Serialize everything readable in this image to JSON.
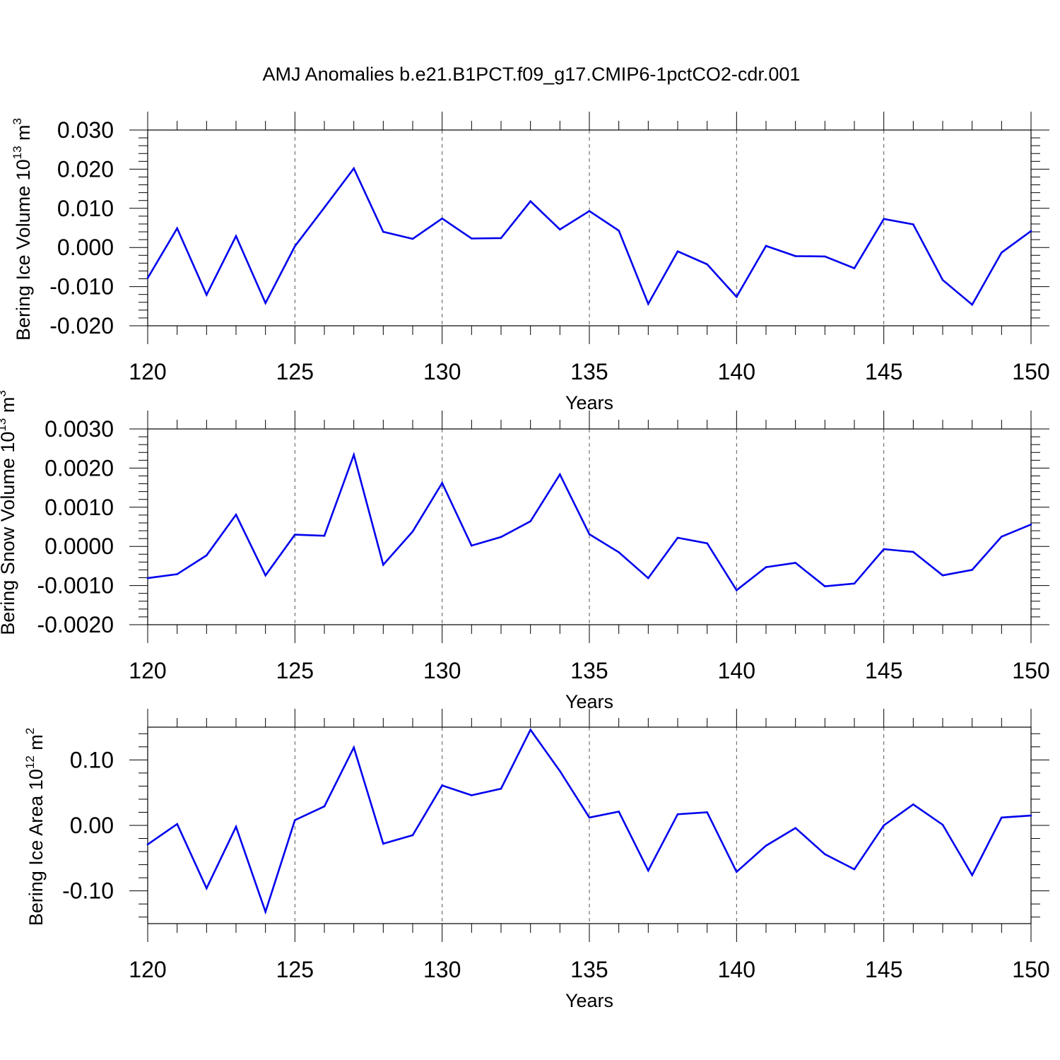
{
  "title": "AMJ Anomalies b.e21.B1PCT.f09_g17.CMIP6-1pctCO2-cdr.001",
  "chart_data": [
    {
      "type": "line",
      "title": "",
      "xlabel": "Years",
      "ylabel": "Bering Ice Volume 10",
      "ylabel_exp": "13",
      "ylabel_unit": "m",
      "ylabel_unit_exp": "3",
      "xlim": [
        120,
        150
      ],
      "ylim": [
        -0.02,
        0.03
      ],
      "xticks": [
        120,
        125,
        130,
        135,
        140,
        145,
        150
      ],
      "xtick_labels": [
        "120",
        "125",
        "130",
        "135",
        "140",
        "145",
        "150"
      ],
      "yticks": [
        -0.02,
        -0.01,
        0.0,
        0.01,
        0.02,
        0.03
      ],
      "ytick_labels": [
        "-0.020",
        "-0.010",
        "0.000",
        "0.010",
        "0.020",
        "0.030"
      ],
      "grid": "dashed vertical at major x ticks",
      "line_color": "#0000ee",
      "series": [
        {
          "x": [
            120,
            121,
            122,
            123,
            124,
            125,
            126,
            127,
            128,
            129,
            130,
            131,
            132,
            133,
            134,
            135,
            136,
            137,
            138,
            139,
            140,
            141,
            142,
            143,
            144,
            145,
            146,
            147,
            148,
            149,
            150
          ],
          "values": [
            -0.0078,
            0.0049,
            -0.0121,
            0.0029,
            -0.0142,
            0.0003,
            0.0102,
            0.0202,
            0.004,
            0.0022,
            0.0074,
            0.0023,
            0.0024,
            0.0118,
            0.0046,
            0.0093,
            0.0043,
            -0.0144,
            -0.001,
            -0.0043,
            -0.0126,
            0.0004,
            -0.0022,
            -0.0023,
            -0.0053,
            0.0073,
            0.0059,
            -0.0083,
            -0.0146,
            -0.0013,
            0.0042
          ]
        }
      ]
    },
    {
      "type": "line",
      "title": "",
      "xlabel": "Years",
      "ylabel": "Bering Snow Volume 10",
      "ylabel_exp": "13",
      "ylabel_unit": "m",
      "ylabel_unit_exp": "3",
      "xlim": [
        120,
        150
      ],
      "ylim": [
        -0.002,
        0.003
      ],
      "xticks": [
        120,
        125,
        130,
        135,
        140,
        145,
        150
      ],
      "xtick_labels": [
        "120",
        "125",
        "130",
        "135",
        "140",
        "145",
        "150"
      ],
      "yticks": [
        -0.002,
        -0.001,
        0.0,
        0.001,
        0.002,
        0.003
      ],
      "ytick_labels": [
        "-0.0020",
        "-0.0010",
        "0.0000",
        "0.0010",
        "0.0020",
        "0.0030"
      ],
      "grid": "dashed vertical at major x ticks",
      "line_color": "#0000ee",
      "series": [
        {
          "x": [
            120,
            121,
            122,
            123,
            124,
            125,
            126,
            127,
            128,
            129,
            130,
            131,
            132,
            133,
            134,
            135,
            136,
            137,
            138,
            139,
            140,
            141,
            142,
            143,
            144,
            145,
            146,
            147,
            148,
            149,
            150
          ],
          "values": [
            -0.00081,
            -0.00071,
            -0.00023,
            0.00081,
            -0.00074,
            0.0003,
            0.00027,
            0.00234,
            -0.00047,
            0.00038,
            0.00162,
            2e-05,
            0.00024,
            0.00064,
            0.00184,
            0.00031,
            -0.00015,
            -0.00081,
            0.00022,
            8e-05,
            -0.00112,
            -0.00053,
            -0.00042,
            -0.00102,
            -0.00095,
            -7e-05,
            -0.00014,
            -0.00074,
            -0.0006,
            0.00025,
            0.00056
          ]
        }
      ]
    },
    {
      "type": "line",
      "title": "",
      "xlabel": "Years",
      "ylabel": "Bering Ice Area 10",
      "ylabel_exp": "12",
      "ylabel_unit": "m",
      "ylabel_unit_exp": "2",
      "xlim": [
        120,
        150
      ],
      "ylim": [
        -0.15,
        0.15
      ],
      "xticks": [
        120,
        125,
        130,
        135,
        140,
        145,
        150
      ],
      "xtick_labels": [
        "120",
        "125",
        "130",
        "135",
        "140",
        "145",
        "150"
      ],
      "yticks": [
        -0.1,
        0.0,
        0.1
      ],
      "ytick_labels": [
        "-0.10",
        "0.00",
        "0.10"
      ],
      "grid": "dashed vertical at major x ticks",
      "line_color": "#0000ee",
      "series": [
        {
          "x": [
            120,
            121,
            122,
            123,
            124,
            125,
            126,
            127,
            128,
            129,
            130,
            131,
            132,
            133,
            134,
            135,
            136,
            137,
            138,
            139,
            140,
            141,
            142,
            143,
            144,
            145,
            146,
            147,
            148,
            149,
            150
          ],
          "values": [
            -0.029,
            0.002,
            -0.096,
            -0.002,
            -0.132,
            0.008,
            0.029,
            0.119,
            -0.028,
            -0.015,
            0.061,
            0.046,
            0.056,
            0.146,
            0.083,
            0.012,
            0.021,
            -0.069,
            0.017,
            0.02,
            -0.071,
            -0.031,
            -0.004,
            -0.044,
            -0.067,
            0.0,
            0.032,
            0.001,
            -0.076,
            0.012,
            0.015
          ]
        }
      ]
    }
  ]
}
